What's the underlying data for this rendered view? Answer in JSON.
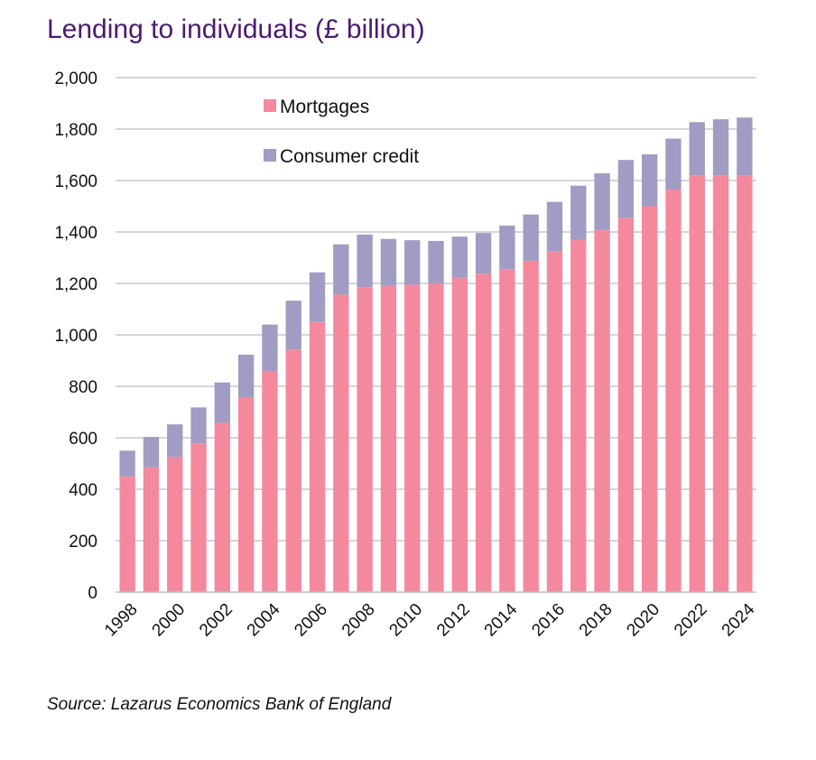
{
  "title": "Lending to individuals (£ billion)",
  "source": "Source: Lazarus Economics Bank of England",
  "colors": {
    "mortgages": "#f4899e",
    "consumer_credit": "#a09cc3",
    "grid": "#c8c8c8",
    "title": "#4b1a6e"
  },
  "chart_data": {
    "type": "bar",
    "stacked": true,
    "title": "Lending to individuals (£ billion)",
    "xlabel": "",
    "ylabel": "",
    "ylim": [
      0,
      2000
    ],
    "yticks": [
      "0",
      "200",
      "400",
      "600",
      "800",
      "1,000",
      "1,200",
      "1,400",
      "1,600",
      "1,800",
      "2,000"
    ],
    "ytick_values": [
      0,
      200,
      400,
      600,
      800,
      1000,
      1200,
      1400,
      1600,
      1800,
      2000
    ],
    "x_tick_labels": [
      "1998",
      "2000",
      "2002",
      "2004",
      "2006",
      "2008",
      "2010",
      "2012",
      "2014",
      "2016",
      "2018",
      "2020",
      "2022",
      "2024"
    ],
    "categories": [
      "1998",
      "1999",
      "2000",
      "2001",
      "2002",
      "2003",
      "2004",
      "2005",
      "2006",
      "2007",
      "2008",
      "2009",
      "2010",
      "2011",
      "2012",
      "2013",
      "2014",
      "2015",
      "2016",
      "2017",
      "2018",
      "2019",
      "2020",
      "2021",
      "2022",
      "2023",
      "2024"
    ],
    "grid": true,
    "legend_position": "top-left inside",
    "series": [
      {
        "name": "Mortgages",
        "values": [
          450,
          485,
          525,
          578,
          658,
          758,
          858,
          943,
          1050,
          1157,
          1185,
          1190,
          1195,
          1200,
          1222,
          1238,
          1255,
          1288,
          1325,
          1370,
          1408,
          1455,
          1500,
          1565,
          1620,
          1620,
          1620
        ]
      },
      {
        "name": "Consumer credit",
        "values": [
          100,
          118,
          127,
          140,
          157,
          165,
          182,
          190,
          193,
          195,
          205,
          183,
          173,
          165,
          160,
          158,
          170,
          180,
          192,
          210,
          220,
          225,
          202,
          198,
          207,
          218,
          225
        ]
      }
    ]
  }
}
